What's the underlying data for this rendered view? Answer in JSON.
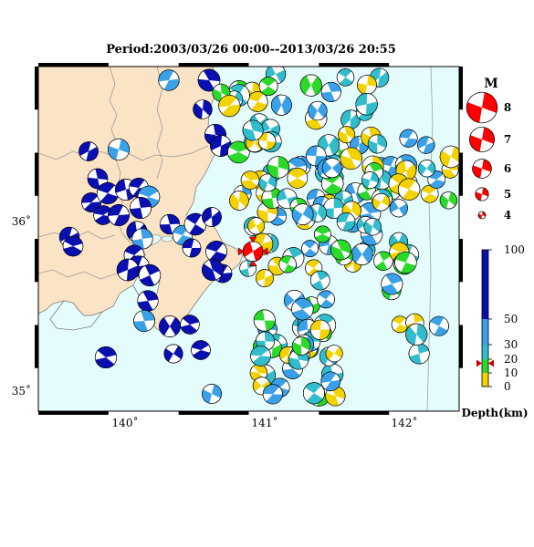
{
  "title": "Period:2003/03/26 00:00--2013/03/26 20:55",
  "map": {
    "lon_ticks": [
      "140˚",
      "141˚",
      "142˚"
    ],
    "lat_ticks": [
      "36˚",
      "35˚"
    ],
    "land_color": "#fbe4c6",
    "sea_color": "#e4fcfc",
    "highlight_event": {
      "lon": 140.92,
      "lat": 35.85,
      "color": "#ff0000",
      "marker": "red-triangle"
    }
  },
  "magnitude_legend": {
    "title": "M",
    "items": [
      {
        "label": "8",
        "mag": 8
      },
      {
        "label": "7",
        "mag": 7
      },
      {
        "label": "6",
        "mag": 6
      },
      {
        "label": "5",
        "mag": 5
      },
      {
        "label": "4",
        "mag": 4
      }
    ]
  },
  "depth_scale": {
    "title": "Depth(km)",
    "ticks": [
      "100",
      "50",
      "30",
      "20",
      "10",
      "0"
    ],
    "bands": [
      {
        "from": 0,
        "to": 10,
        "color": "#f2d200"
      },
      {
        "from": 10,
        "to": 20,
        "color": "#2bd92b"
      },
      {
        "from": 20,
        "to": 30,
        "color": "#33bccc"
      },
      {
        "from": 30,
        "to": 50,
        "color": "#3aa0e8"
      },
      {
        "from": 50,
        "to": 100,
        "color": "#0a0fb0"
      }
    ],
    "marker_depth": 17
  },
  "events_summary": {
    "inland_color": "#0a0fb0",
    "offshore_colors": [
      "#3aa0e8",
      "#33bccc",
      "#2bd92b",
      "#f2d200"
    ]
  }
}
